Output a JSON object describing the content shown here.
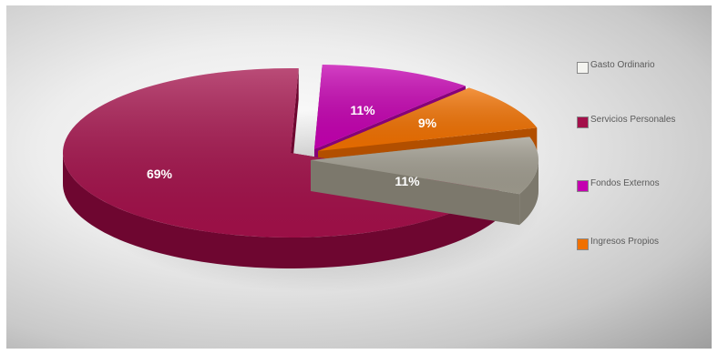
{
  "chart_data": {
    "type": "pie",
    "title": "",
    "legend_position": "right",
    "categories": [
      "Gasto Ordinario",
      "Servicios Personales",
      "Fondos Externos",
      "Ingresos Propios"
    ],
    "values": [
      11,
      69,
      11,
      9
    ],
    "value_labels": [
      "11%",
      "69%",
      "11%",
      "9%"
    ],
    "colors": [
      "#f4f4f0",
      "#a3104a",
      "#c400b0",
      "#f07000"
    ],
    "slice_colors": [
      "#a09c8f",
      "#a3104a",
      "#c400b0",
      "#f07000"
    ],
    "side_colors": [
      "#7c786c",
      "#6e0630",
      "#86007a",
      "#b24f00"
    ]
  }
}
